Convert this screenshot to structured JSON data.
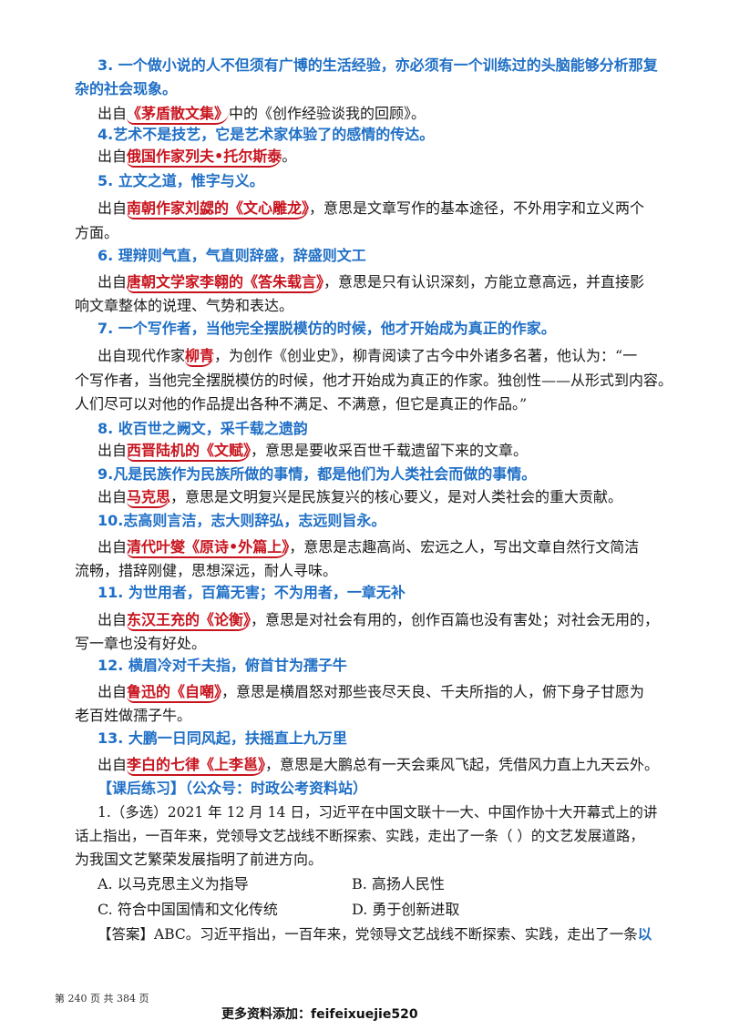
{
  "items": [
    {
      "heading_a": "3. 一个做小说的人不但须有广博的生活经验，亦必须有一个训练过的头脑能够分析那复",
      "heading_b": "杂的社会现象。",
      "pre": "出自",
      "src": "《茅盾散文集》",
      "post": "中的《创作经验谈我的回顾》。"
    },
    {
      "heading": "4.艺术不是技艺，它是艺术家体验了的感情的传达。",
      "pre": "出自",
      "src": "俄国作家列夫•托尔斯泰",
      "post": "。"
    },
    {
      "heading": "5. 立文之道，惟字与义。",
      "pre": "出自",
      "src": "南朝作家刘勰的《文心雕龙》",
      "post": "，意思是文章写作的基本途径，不外用字和立义两个",
      "cont": "方面。"
    },
    {
      "heading": "6. 理辩则气直，气直则辞盛，辞盛则文工",
      "pre": "出自",
      "src": "唐朝文学家李翱的《答朱载言》",
      "post": "，意思是只有认识深刻，方能立意高远，并直接影",
      "cont": "响文章整体的说理、气势和表达。"
    },
    {
      "heading": "7. 一个写作者，当他完全摆脱模仿的时候，他才开始成为真正的作家。",
      "pre": "出自现代作家",
      "src": "柳青",
      "post": "，为创作《创业史》，柳青阅读了古今中外诸多名著，他认为：“一",
      "cont": "个写作者，当他完全摆脱模仿的时候，他才开始成为真正的作家。独创性——从形式到内容。",
      "cont2": "人们尽可以对他的作品提出各种不满足、不满意，但它是真正的作品。”"
    },
    {
      "heading": "8. 收百世之阙文，采千载之遗韵",
      "pre": "出自",
      "src": "西晋陆机的《文赋》",
      "post": "，意思是要收采百世千载遗留下来的文章。"
    },
    {
      "heading": "9.凡是民族作为民族所做的事情，都是他们为人类社会而做的事情。",
      "pre": "出自",
      "src": "马克思",
      "post": "，意思是文明复兴是民族复兴的核心要义，是对人类社会的重大贡献。"
    },
    {
      "heading": "10.志高则言洁，志大则辞弘，志远则旨永。",
      "pre": "出自",
      "src": "清代叶燮《原诗•外篇上》",
      "post": "，意思是志趣高尚、宏远之人，写出文章自然行文简洁",
      "cont": "流畅，措辞刚健，思想深远，耐人寻味。"
    },
    {
      "heading": "11. 为世用者，百篇无害；不为用者，一章无补",
      "pre": "出自",
      "src": "东汉王充的《论衡》",
      "post": "，意思是对社会有用的，创作百篇也没有害处；对社会无用的，",
      "cont": "写一章也没有好处。"
    },
    {
      "heading": "12. 横眉冷对千夫指，俯首甘为孺子牛",
      "pre": "出自",
      "src": "鲁迅的《自嘲》",
      "post": "，意思是横眉怒对那些丧尽天良、千夫所指的人，俯下身子甘愿为",
      "cont": "老百姓做孺子牛。"
    },
    {
      "heading": "13. 大鹏一日同风起，扶摇直上九万里",
      "pre": "出自",
      "src": "李白的七律《上李邕》",
      "post": "，意思是大鹏总有一天会乘风飞起，凭借风力直上九天云外。"
    }
  ],
  "exercise": {
    "title": "【课后练习】（公众号：时政公考资料站）",
    "q_line1": "1.（多选）2021 年 12 月 14 日，习近平在中国文联十一大、中国作协十大开幕式上的讲",
    "q_line2": "话上指出，一百年来，党领导文艺战线不断探索、实践，走出了一条（    ）的文艺发展道路，",
    "q_line3": "为我国文艺繁荣发展指明了前进方向。",
    "opt_a": "A. 以马克思主义为指导",
    "opt_b": "B. 高扬人民性",
    "opt_c": "C. 符合中国国情和文化传统",
    "opt_d": "D. 勇于创新进取",
    "answer_text": "【答案】ABC。习近平指出，一百年来，党领导文艺战线不断探索、实践，走出了一条",
    "answer_tail": "以"
  },
  "footer": {
    "page": "第 240 页 共 384 页",
    "watermark": "更多资料添加：feifeixuejie520"
  }
}
